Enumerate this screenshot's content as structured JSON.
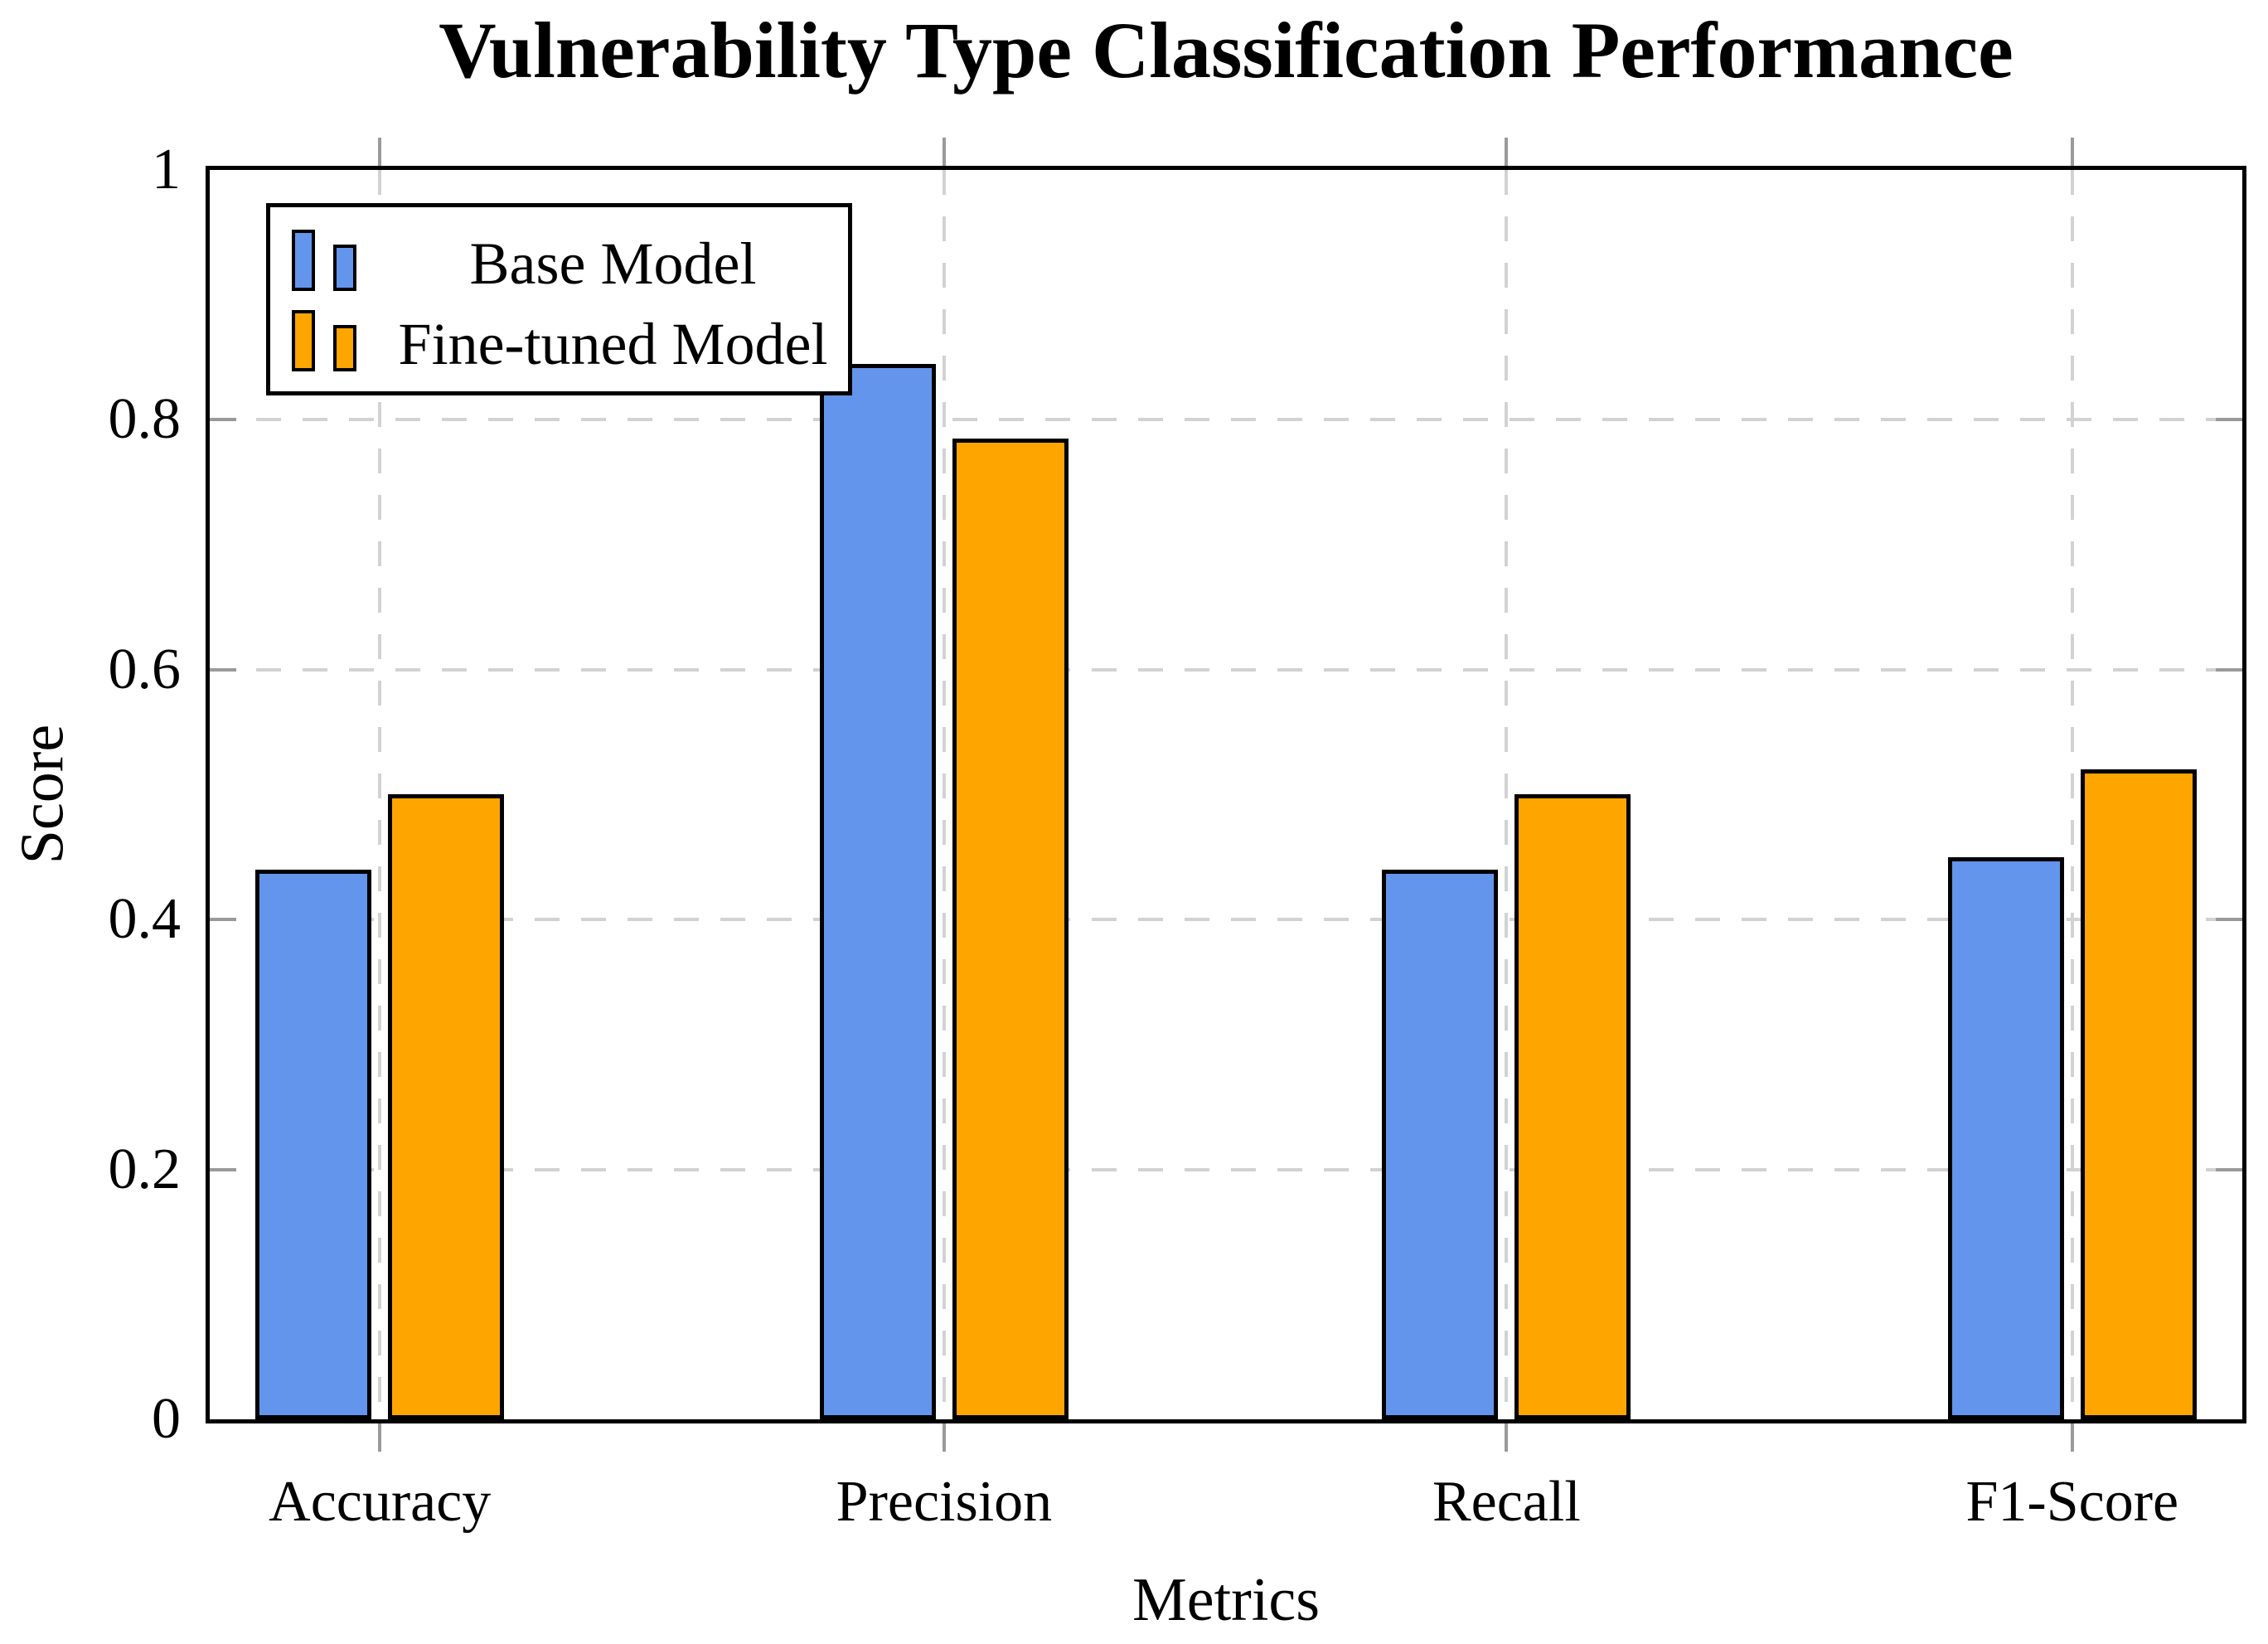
{
  "chart_data": {
    "type": "bar",
    "title": "Vulnerability Type Classification Performance",
    "xlabel": "Metrics",
    "ylabel": "Score",
    "categories": [
      "Accuracy",
      "Precision",
      "Recall",
      "F1-Score"
    ],
    "series": [
      {
        "name": "Base Model",
        "color": "#6495ED",
        "values": [
          0.44,
          0.845,
          0.44,
          0.45
        ]
      },
      {
        "name": "Fine-tuned Model",
        "color": "#FFA500",
        "values": [
          0.5,
          0.785,
          0.5,
          0.52
        ]
      }
    ],
    "ylim": [
      0,
      1
    ],
    "yticks": [
      {
        "label": "0",
        "value": 0
      },
      {
        "label": "0.2",
        "value": 0.2
      },
      {
        "label": "0.4",
        "value": 0.4
      },
      {
        "label": "0.6",
        "value": 0.6
      },
      {
        "label": "0.8",
        "value": 0.8
      },
      {
        "label": "1",
        "value": 1
      }
    ],
    "grid": {
      "show": true,
      "style": "dashed",
      "axes": "both",
      "color": "#d2d2d2"
    },
    "legend": {
      "position": "top-left",
      "entries": [
        "Base Model",
        "Fine-tuned Model"
      ]
    },
    "colors": {
      "axis": "#000000",
      "tick": "#9a9a9a",
      "bar_border": "#000000",
      "background": "#ffffff"
    }
  }
}
